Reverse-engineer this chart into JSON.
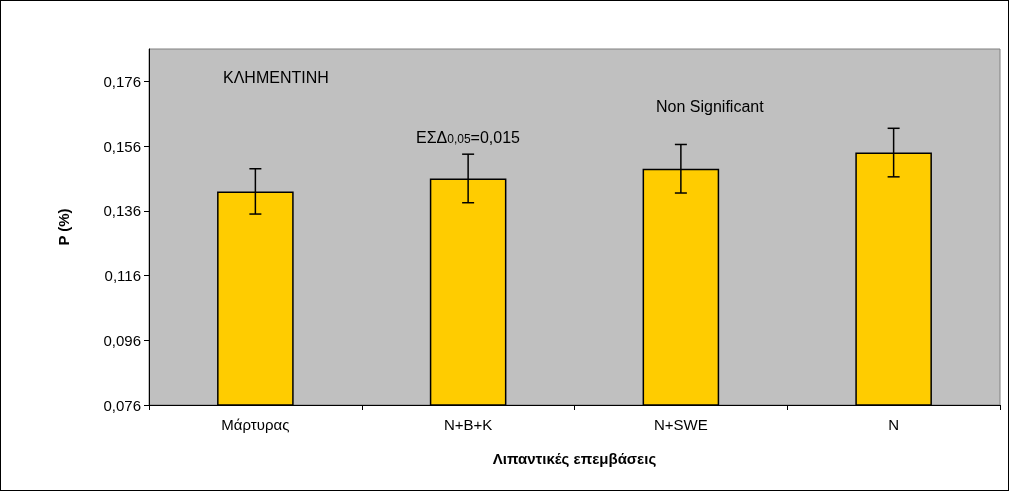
{
  "chart_data": {
    "type": "bar",
    "xlabel": "Λιπαντικές επεμβάσεις",
    "ylabel": "P (%)",
    "categories": [
      "Μάρτυρας",
      "N+B+K",
      "N+SWE",
      "N"
    ],
    "values": [
      0.142,
      0.146,
      0.149,
      0.154
    ],
    "errors": [
      0.007,
      0.0075,
      0.0075,
      0.0075
    ],
    "color": "#ffcc00",
    "ylim": [
      0.076,
      0.186
    ],
    "yticks": [
      {
        "value": 0.076,
        "label": "0,076"
      },
      {
        "value": 0.096,
        "label": "0,096"
      },
      {
        "value": 0.116,
        "label": "0,116"
      },
      {
        "value": 0.136,
        "label": "0,136"
      },
      {
        "value": 0.156,
        "label": "0,156"
      },
      {
        "value": 0.176,
        "label": "0,176"
      }
    ],
    "annotations": [
      "ΚΛΗΜΕΝΤΙΝΗ",
      "ΕΣΔ$_{0,05}$=0,015",
      "Non Significant"
    ],
    "grid": false
  }
}
